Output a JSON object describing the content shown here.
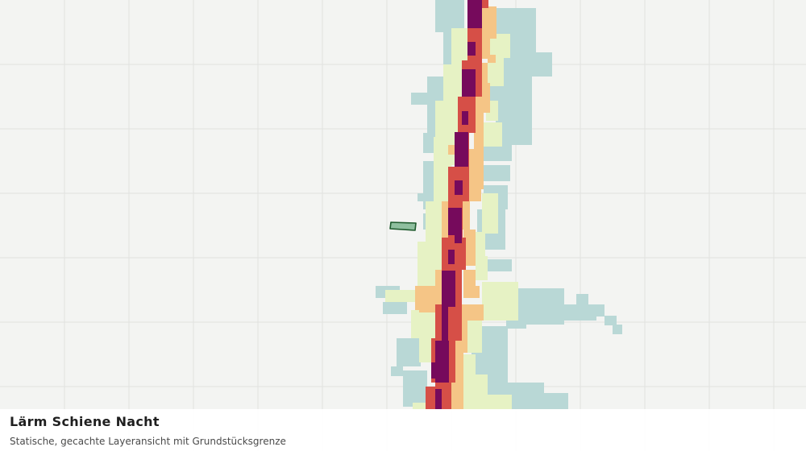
{
  "caption": {
    "title": "Lärm Schiene Nacht",
    "subtitle": "Statische, gecachte Layeransicht mit Grundstücksgrenze"
  },
  "colors": {
    "background": "#f3f4f2",
    "grid": "#e0e2df",
    "noise_lowest": "#b9d8d6",
    "noise_low": "#e6f2c4",
    "noise_medium": "#f5c586",
    "noise_high": "#d64f47",
    "noise_highest": "#760a5c",
    "parcel_fill": "#8fbf9f",
    "parcel_stroke": "#1f5b2e"
  }
}
